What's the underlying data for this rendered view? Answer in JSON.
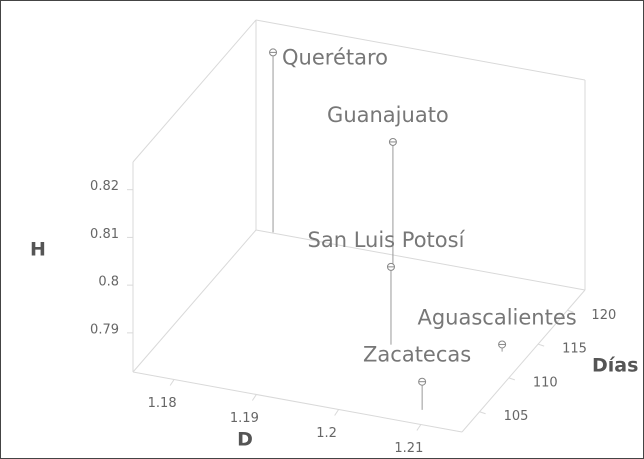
{
  "chart_data": {
    "type": "scatter3d",
    "x_label": "D",
    "y_label": "Días",
    "z_label": "H",
    "categories": [
      "Querétaro",
      "Guanajuato",
      "San Luis Potosí",
      "Aguascalientes",
      "Zacatecas"
    ],
    "x": [
      1.177,
      1.193,
      1.1996,
      1.2119,
      1.2088
    ],
    "y": [
      123.1,
      121.1,
      111.5,
      113.2,
      103.9
    ],
    "z": [
      0.8195,
      0.8086,
      0.7981,
      0.7833,
      0.7877
    ],
    "xlim": [
      1.175,
      1.215
    ],
    "xticks": [
      1.18,
      1.19,
      1.2,
      1.21
    ],
    "ylim": [
      102,
      123
    ],
    "yticks": [
      105,
      110,
      115,
      120
    ],
    "zlim": [
      0.7818,
      0.8258
    ],
    "zticks": [
      0.79,
      0.8,
      0.81,
      0.82
    ],
    "color": "#888888"
  }
}
